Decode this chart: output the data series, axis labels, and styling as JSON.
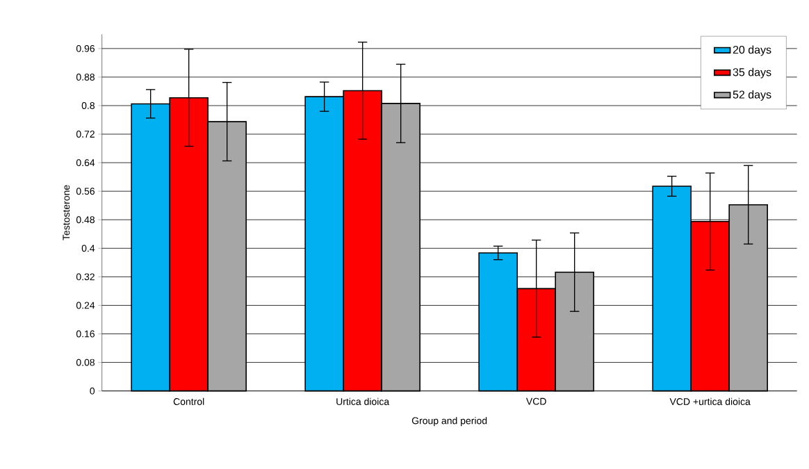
{
  "chart_data": {
    "type": "bar",
    "xlabel": "Group and period",
    "ylabel": "Testosterone",
    "categories": [
      "Control",
      "Urtica dioica",
      "VCD",
      "VCD +urtica dioica"
    ],
    "series": [
      {
        "name": "20 days",
        "color": "#00b0f0",
        "values": [
          0.805,
          0.825,
          0.387,
          0.574
        ],
        "errors": [
          0.04,
          0.041,
          0.019,
          0.028
        ]
      },
      {
        "name": "35 days",
        "color": "#ff0000",
        "values": [
          0.822,
          0.842,
          0.287,
          0.475
        ],
        "errors": [
          0.136,
          0.136,
          0.136,
          0.136
        ]
      },
      {
        "name": "52 days",
        "color": "#a6a6a6",
        "values": [
          0.755,
          0.806,
          0.333,
          0.522
        ],
        "errors": [
          0.11,
          0.11,
          0.11,
          0.11
        ]
      }
    ],
    "ylim": [
      0,
      1
    ],
    "yticks": [
      0,
      0.08,
      0.16,
      0.24,
      0.32,
      0.4,
      0.48,
      0.56,
      0.64,
      0.72,
      0.8,
      0.88,
      0.96
    ],
    "grid": "y",
    "legend": "top right"
  }
}
